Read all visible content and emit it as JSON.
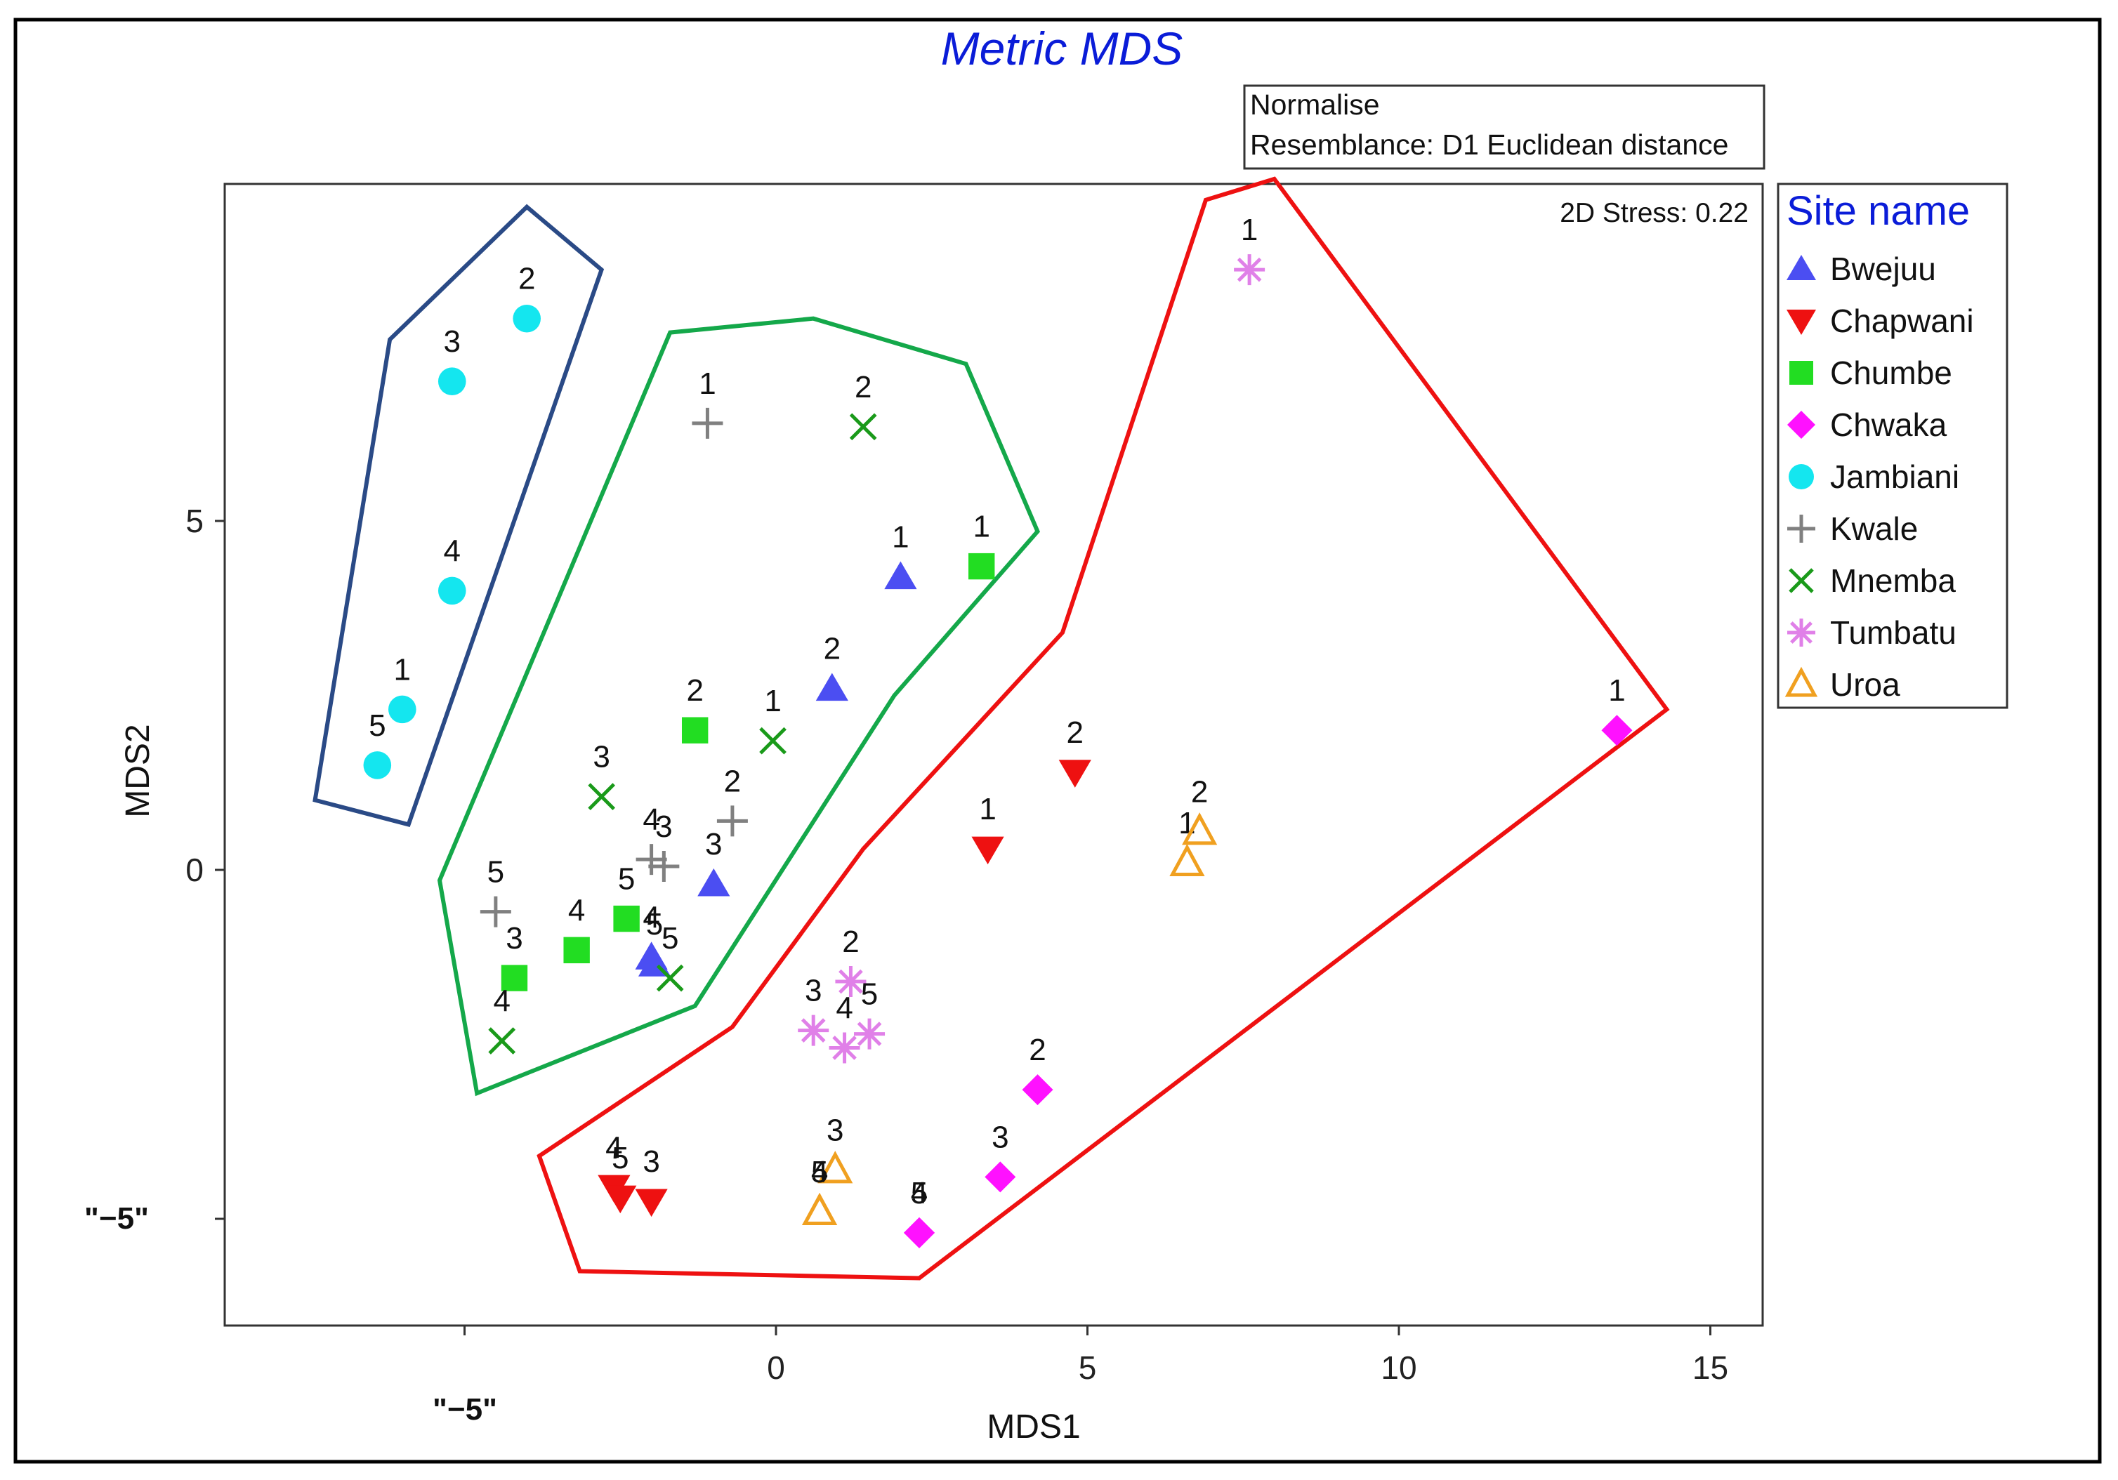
{
  "chart_data": {
    "type": "scatter",
    "title": "Metric MDS",
    "xlabel": "MDS1",
    "ylabel": "MDS2",
    "xlim": [
      -9,
      16
    ],
    "ylim": [
      -6.5,
      9.8
    ],
    "xticks": [
      {
        "value": 0,
        "label": "0"
      },
      {
        "value": 5,
        "label": "5"
      },
      {
        "value": 10,
        "label": "10"
      },
      {
        "value": 15,
        "label": "15"
      }
    ],
    "yticks": [
      {
        "value": 0,
        "label": "0"
      },
      {
        "value": 5,
        "label": "5"
      }
    ],
    "extra_tick_labels": {
      "x_minus_five": "\"−5\"",
      "y_minus_five": "\"−5\""
    },
    "info_box": [
      "Normalise",
      "Resemblance: D1 Euclidean distance"
    ],
    "stress_label": "2D Stress: 0.22",
    "legend_title": "Site name",
    "legend_position": "right",
    "colors": {
      "title": "#0a1cd8",
      "blue_hull": "#2a4a86",
      "green_hull": "#14a84a",
      "red_hull": "#ee1111"
    },
    "series": [
      {
        "name": "Bwejuu",
        "marker": "triangle-up",
        "color": "#4b4ef2",
        "points": [
          {
            "x": 2.0,
            "y": 4.2,
            "label": "1"
          },
          {
            "x": 0.9,
            "y": 2.6,
            "label": "2"
          },
          {
            "x": -1.0,
            "y": -0.2,
            "label": "3"
          },
          {
            "x": -2.0,
            "y": -1.25,
            "label": "4"
          },
          {
            "x": -1.95,
            "y": -1.35,
            "label": "5"
          }
        ]
      },
      {
        "name": "Chapwani",
        "marker": "triangle-down",
        "color": "#ee1111",
        "points": [
          {
            "x": 3.4,
            "y": 0.3,
            "label": "1"
          },
          {
            "x": 4.8,
            "y": 1.4,
            "label": "2"
          },
          {
            "x": -2.0,
            "y": -4.75,
            "label": "3"
          },
          {
            "x": -2.6,
            "y": -4.55,
            "label": "4"
          },
          {
            "x": -2.5,
            "y": -4.7,
            "label": "5"
          }
        ]
      },
      {
        "name": "Chumbe",
        "marker": "square",
        "color": "#22dd22",
        "points": [
          {
            "x": 3.3,
            "y": 4.35,
            "label": "1"
          },
          {
            "x": -1.3,
            "y": 2.0,
            "label": "2"
          },
          {
            "x": -4.2,
            "y": -1.55,
            "label": "3"
          },
          {
            "x": -3.2,
            "y": -1.15,
            "label": "4"
          },
          {
            "x": -2.4,
            "y": -0.7,
            "label": "5"
          }
        ]
      },
      {
        "name": "Chwaka",
        "marker": "diamond",
        "color": "#ff11ff",
        "points": [
          {
            "x": 13.5,
            "y": 2.0,
            "label": "1"
          },
          {
            "x": 4.2,
            "y": -3.15,
            "label": "2"
          },
          {
            "x": 3.6,
            "y": -4.4,
            "label": "3"
          },
          {
            "x": 2.3,
            "y": -5.2,
            "label": "4"
          },
          {
            "x": 2.3,
            "y": -5.2,
            "label": "5"
          }
        ]
      },
      {
        "name": "Jambiani",
        "marker": "circle",
        "color": "#14e6ef",
        "points": [
          {
            "x": -6.0,
            "y": 2.3,
            "label": "1"
          },
          {
            "x": -4.0,
            "y": 7.9,
            "label": "2"
          },
          {
            "x": -5.2,
            "y": 7.0,
            "label": "3"
          },
          {
            "x": -5.2,
            "y": 4.0,
            "label": "4"
          },
          {
            "x": -6.4,
            "y": 1.5,
            "label": "5"
          }
        ]
      },
      {
        "name": "Kwale",
        "marker": "plus",
        "color": "#808080",
        "points": [
          {
            "x": -1.1,
            "y": 6.4,
            "label": "1"
          },
          {
            "x": -0.7,
            "y": 0.7,
            "label": "2"
          },
          {
            "x": -1.8,
            "y": 0.05,
            "label": "3"
          },
          {
            "x": -2.0,
            "y": 0.15,
            "label": "4"
          },
          {
            "x": -4.5,
            "y": -0.6,
            "label": "5"
          }
        ]
      },
      {
        "name": "Mnemba",
        "marker": "x",
        "color": "#1a9a1a",
        "points": [
          {
            "x": -0.05,
            "y": 1.85,
            "label": "1"
          },
          {
            "x": 1.4,
            "y": 6.35,
            "label": "2"
          },
          {
            "x": -2.8,
            "y": 1.05,
            "label": "3"
          },
          {
            "x": -4.4,
            "y": -2.45,
            "label": "4"
          },
          {
            "x": -1.7,
            "y": -1.55,
            "label": "5"
          }
        ]
      },
      {
        "name": "Tumbatu",
        "marker": "asterisk",
        "color": "#e080e8",
        "points": [
          {
            "x": 7.6,
            "y": 8.6,
            "label": "1"
          },
          {
            "x": 1.2,
            "y": -1.6,
            "label": "2"
          },
          {
            "x": 0.6,
            "y": -2.3,
            "label": "3"
          },
          {
            "x": 1.1,
            "y": -2.55,
            "label": "4"
          },
          {
            "x": 1.5,
            "y": -2.35,
            "label": "5"
          }
        ]
      },
      {
        "name": "Uroa",
        "marker": "triangle-up-open",
        "color": "#f0a020",
        "points": [
          {
            "x": 6.6,
            "y": 0.1,
            "label": "1"
          },
          {
            "x": 6.8,
            "y": 0.55,
            "label": "2"
          },
          {
            "x": 0.95,
            "y": -4.3,
            "label": "3"
          },
          {
            "x": 0.7,
            "y": -4.9,
            "label": "4"
          },
          {
            "x": 0.7,
            "y": -4.9,
            "label": "5"
          }
        ]
      }
    ],
    "hulls": [
      {
        "name": "jambiani-group",
        "color": "#2a4a86",
        "points": [
          [
            -7.4,
            1.0
          ],
          [
            -6.2,
            7.6
          ],
          [
            -4.0,
            9.5
          ],
          [
            -2.8,
            8.6
          ],
          [
            -5.9,
            0.65
          ]
        ]
      },
      {
        "name": "central-group",
        "color": "#14a84a",
        "points": [
          [
            -5.4,
            -0.15
          ],
          [
            -1.7,
            7.7
          ],
          [
            0.6,
            7.9
          ],
          [
            3.05,
            7.25
          ],
          [
            4.2,
            4.85
          ],
          [
            1.9,
            2.5
          ],
          [
            -1.3,
            -1.95
          ],
          [
            -4.8,
            -3.2
          ]
        ]
      },
      {
        "name": "outer-group",
        "color": "#ee1111",
        "points": [
          [
            -3.8,
            -4.1
          ],
          [
            -3.15,
            -5.75
          ],
          [
            2.3,
            -5.85
          ],
          [
            14.3,
            2.3
          ],
          [
            8.0,
            9.9
          ],
          [
            6.9,
            9.6
          ],
          [
            4.6,
            3.4
          ],
          [
            1.4,
            0.3
          ],
          [
            -0.7,
            -2.25
          ]
        ]
      }
    ]
  }
}
